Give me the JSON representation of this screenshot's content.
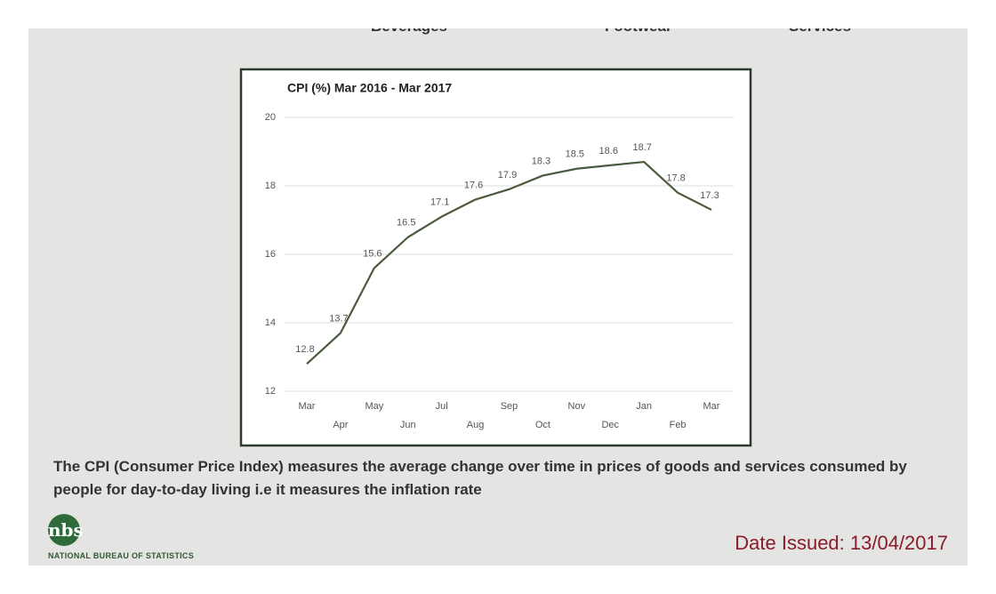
{
  "header_fragments": [
    "Beverages",
    "Footwear",
    "Services"
  ],
  "chart_data": {
    "type": "line",
    "title": "CPI (%) Mar 2016 - Mar 2017",
    "categories": [
      "Mar",
      "Apr",
      "May",
      "Jun",
      "Jul",
      "Aug",
      "Sep",
      "Oct",
      "Nov",
      "Dec",
      "Jan",
      "Feb",
      "Mar"
    ],
    "values": [
      12.8,
      13.7,
      15.6,
      16.5,
      17.1,
      17.6,
      17.9,
      18.3,
      18.5,
      18.6,
      18.7,
      17.8,
      17.3
    ],
    "color": "#4a5a3e",
    "ylim": [
      12,
      20
    ],
    "yticks": [
      12,
      14,
      16,
      18,
      20
    ],
    "grid": true
  },
  "description": "The CPI (Consumer Price Index) measures the average change over time in prices of goods and services consumed by people for day-to-day living i.e it measures the inflation rate",
  "logo": {
    "mark": "nbs",
    "name": "NATIONAL BUREAU OF STATISTICS"
  },
  "date_issued": "Date Issued: 13/04/2017"
}
